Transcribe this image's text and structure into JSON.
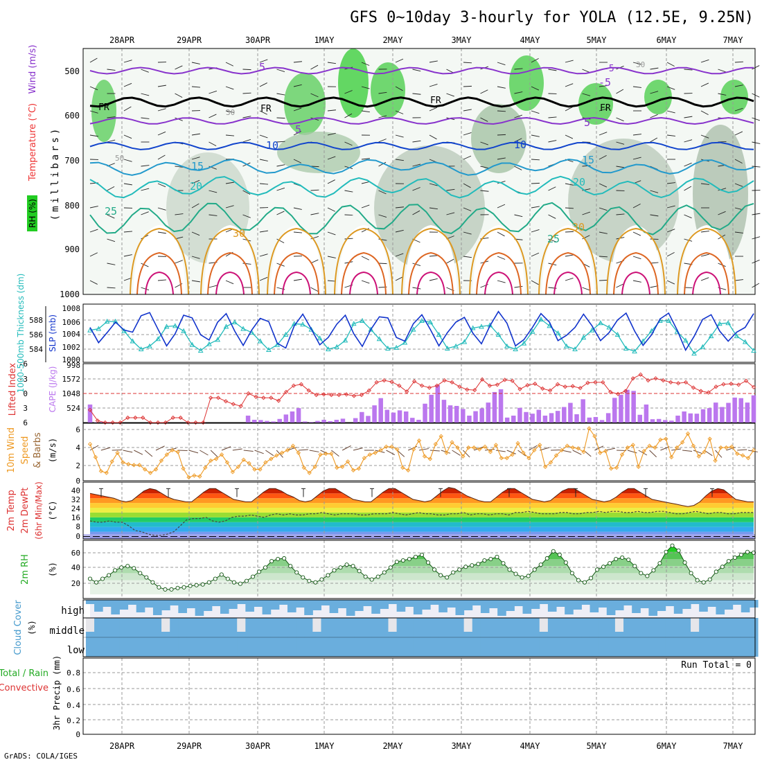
{
  "title": "GFS 0~10day 3-hourly for YOLA (12.5E, 9.25N)",
  "credit": "GrADS: COLA/IGES",
  "dates": [
    "28APR",
    "29APR",
    "30APR",
    "1MAY",
    "2MAY",
    "3MAY",
    "4MAY",
    "5MAY",
    "6MAY",
    "7MAY"
  ],
  "colors": {
    "rh_green": "#22cc22",
    "temperature": "#ee3333",
    "wind_purple": "#8833cc",
    "thickness": "#22bbbb",
    "slp": "#1133cc",
    "lifted_index": "#dd3333",
    "cape": "#bb77ee",
    "wind_speed": "#ee9922",
    "cloud": "#6aaedd",
    "grid": "#999999"
  },
  "panels": {
    "upper_air": {
      "ylabel_rh": "RH (%)",
      "ylabel_temp": "Temperature (°C)",
      "ylabel_wind": "Wind (m/s)",
      "ylabel_p": "(millibars)",
      "y_ticks": [
        "500",
        "600",
        "700",
        "800",
        "900",
        "1000"
      ],
      "contour_labels": [
        "FR",
        "FR",
        "FR",
        "FR",
        "5",
        "5",
        "5",
        "-5",
        "-5",
        "10",
        "10",
        "15",
        "15",
        "20",
        "20",
        "25",
        "25",
        "30",
        "30",
        "50",
        "30",
        "30"
      ]
    },
    "slp_thickness": {
      "ylabel_thk": "1000-500mb Thickness (dm)",
      "ylabel_slp": "SLP (mb)",
      "left_ticks": [
        "588",
        "586",
        "584"
      ],
      "right_ticks": [
        "1008",
        "1006",
        "1004",
        "1002",
        "1000",
        "998"
      ]
    },
    "cape_li": {
      "ylabel_li": "Lifted Index",
      "ylabel_cape": "CAPE (J/kg)",
      "left_ticks": [
        "-6",
        "-3",
        "0",
        "3",
        "6"
      ],
      "right_ticks": [
        "1572",
        "1048",
        "524"
      ]
    },
    "wind10m": {
      "ylabel1": "10m Wind",
      "ylabel2": "Speed",
      "ylabel3": "& Barbs",
      "unit": "(m/s)",
      "ticks": [
        "6",
        "4",
        "2",
        "0"
      ]
    },
    "temp2m": {
      "ylabel1": "2m Temp",
      "ylabel2": "2m DewPt",
      "ylabel3": "(6hr Min/Max)",
      "unit": "(°C)",
      "ticks": [
        "40",
        "32",
        "24",
        "16",
        "8",
        "0"
      ]
    },
    "rh2m": {
      "ylabel": "2m RH",
      "unit": "(%)",
      "ticks": [
        "60",
        "40",
        "20"
      ]
    },
    "cloud": {
      "ylabel": "Cloud Cover",
      "unit": "(%)",
      "levels": [
        "high",
        "middle",
        "low"
      ]
    },
    "precip": {
      "ylabel1": "Total / Rain",
      "ylabel2": "Convective",
      "ylabel3": "3hr Precip (mm)",
      "run_total": "Run Total = 0",
      "ticks": [
        "0.8",
        "0.6",
        "0.4",
        "0.2",
        "0"
      ]
    }
  },
  "chart_data": [
    {
      "type": "line",
      "name": "slp_thickness",
      "x_unit": "3-hourly step",
      "series": [
        {
          "name": "SLP (mb)",
          "y": [
            1004.6,
            1001.7,
            1003.6,
            1005.6,
            1004.1,
            1003.7,
            1006.8,
            1007.4,
            1004.2,
            1001.1,
            1003.4,
            1006.9,
            1006.4,
            1003.2,
            1002.2,
            1005.6,
            1007.2,
            1003.9,
            1001.2,
            1004.1,
            1006.3,
            1005.7,
            1001.6,
            1000.7,
            1004.9,
            1007.1,
            1004.3,
            1001.3,
            1002.7,
            1005.2,
            1006.9,
            1003.4,
            1001.0,
            1004.2,
            1006.6,
            1006.4,
            1002.7,
            1002.0,
            1005.3,
            1007.0,
            1004.2,
            1001.1,
            1003.6,
            1005.6,
            1006.5,
            1003.5,
            1001.5,
            1004.9,
            1007.6,
            1005.4,
            1001.1,
            1002.3,
            1004.6,
            1007.2,
            1005.6,
            1002.1,
            1003.1,
            1004.6,
            1007.1,
            1004.9,
            1002.1,
            1003.6,
            1006.0,
            1007.3,
            1003.9,
            1001.2,
            1003.2,
            1006.2,
            1007.3,
            1004.1,
            1000.3,
            1002.9,
            1006.1,
            1007.0,
            1003.9,
            1002.0,
            1003.7,
            1004.6,
            1007.2
          ]
        },
        {
          "name": "1000-500mb Thickness (dm)",
          "y": [
            586.6,
            586.8,
            587.8,
            587.8,
            586.5,
            585.1,
            584.0,
            584.4,
            585.4,
            587.1,
            587.2,
            586.5,
            584.6,
            583.8,
            584.7,
            585.3,
            587.1,
            587.7,
            586.8,
            586.3,
            585.1,
            583.9,
            584.6,
            586.0,
            587.5,
            587.4,
            586.7,
            585.5,
            584.0,
            584.3,
            585.2,
            587.5,
            587.9,
            586.7,
            585.4,
            584.1,
            584.2,
            584.9,
            586.7,
            587.9,
            587.7,
            586.0,
            584.1,
            584.4,
            585.0,
            586.9,
            587.1,
            587.3,
            586.0,
            584.4,
            584.0,
            584.8,
            586.4,
            588.1,
            587.2,
            586.2,
            584.4,
            584.0,
            585.6,
            586.6,
            587.6,
            587.0,
            586.0,
            584.1,
            583.7,
            585.1,
            586.5,
            587.9,
            587.9,
            586.4,
            585.2,
            583.4,
            584.3,
            585.8,
            587.5,
            587.6,
            585.8,
            585.0,
            583.8
          ]
        }
      ]
    },
    {
      "type": "bar",
      "name": "cape_lifted_index",
      "series": [
        {
          "name": "CAPE (J/kg)",
          "y": [
            650,
            10,
            20,
            20,
            10,
            0,
            0,
            0,
            0,
            0,
            0,
            0,
            0,
            0,
            0,
            0,
            0,
            0,
            0,
            0,
            0,
            0,
            0,
            0,
            0,
            250,
            100,
            90,
            60,
            40,
            130,
            290,
            400,
            520,
            40,
            20,
            60,
            100,
            50,
            100,
            140,
            0,
            160,
            380,
            240,
            620,
            880,
            460,
            360,
            440,
            400,
            170,
            100,
            680,
            1000,
            1350,
            820,
            620,
            600,
            490,
            250,
            410,
            510,
            720,
            1100,
            1200,
            180,
            250,
            530,
            380,
            320,
            460,
            250,
            340,
            420,
            560,
            710,
            300,
            840,
            180,
            200,
            90,
            340,
            890,
            1000,
            1180,
            1140,
            280,
            650,
            120,
            130,
            90,
            70,
            250,
            400,
            330,
            320,
            480,
            520,
            720,
            560,
            710,
            900,
            880,
            720,
            980
          ]
        },
        {
          "name": "Lifted Index",
          "y": [
            3.4,
            5.6,
            6,
            6,
            6,
            5,
            5,
            5,
            6,
            6,
            6,
            5,
            5,
            6,
            6,
            6,
            0.9,
            0.9,
            1.6,
            2.2,
            2.6,
            0,
            0.7,
            0.9,
            0.9,
            1.5,
            -0.3,
            -1.6,
            -1.9,
            -0.6,
            0.3,
            0.2,
            0.3,
            0.3,
            0.2,
            0.5,
            0.3,
            -0.6,
            -2.3,
            -2.7,
            -2.4,
            -1.6,
            -0.4,
            -2.5,
            -1.6,
            -1.2,
            -1.6,
            -2.7,
            -2.3,
            -1.4,
            -0.8,
            -0.7,
            -2.9,
            -1.6,
            -1.8,
            -2.8,
            -2.6,
            -0.9,
            -1.7,
            -2.0,
            -1.0,
            -0.6,
            -1.9,
            -1.4,
            -1.5,
            -1.1,
            -2.2,
            -2.3,
            -2.3,
            -0.3,
            0.1,
            -0.5,
            -3.1,
            -3.9,
            -2.7,
            -3.1,
            -2.7,
            -2.3,
            -2.1,
            -2.3,
            -1.2,
            -0.5,
            -0.2,
            -1.4,
            -1.9,
            -2.0,
            -1.8,
            -2.6,
            -1.3
          ]
        }
      ]
    },
    {
      "type": "line",
      "name": "wind_speed_10m",
      "series": [
        {
          "name": "10m Wind Speed (m/s)",
          "y": [
            4.2,
            2.7,
            1.1,
            0.9,
            2.2,
            3.2,
            2.1,
            1.9,
            1.8,
            1.8,
            1.3,
            0.9,
            1.3,
            2.3,
            3.0,
            3.5,
            3.3,
            1.4,
            0.4,
            0.6,
            0.5,
            1.5,
            2.3,
            2.5,
            3.0,
            2.1,
            1.0,
            1.6,
            2.4,
            2.0,
            1.3,
            1.3,
            2.1,
            2.5,
            2.9,
            3.2,
            3.5,
            4.0,
            3.2,
            1.5,
            0.9,
            1.6,
            3.0,
            3.1,
            3.1,
            1.5,
            1.6,
            2.2,
            1.2,
            1.4,
            2.6,
            3.0,
            3.2,
            3.5,
            3.9,
            3.9,
            3.6,
            1.5,
            1.2,
            3.6,
            4.6,
            2.8,
            2.5,
            4.2,
            5.1,
            3.2,
            4.4,
            3.8,
            2.8,
            3.8,
            3.8,
            3.6,
            3.9,
            3.3,
            4.1,
            2.6,
            2.6,
            3.0,
            4.3,
            3.2,
            2.6,
            3.5,
            4.1,
            1.6,
            2.1,
            2.9,
            3.5,
            4.0,
            3.8,
            3.7,
            3.3,
            6.0,
            5.1,
            3.2,
            3.4,
            1.4,
            1.5,
            3.0,
            3.8,
            4.1,
            1.6,
            3.4,
            4.0,
            3.8,
            4.7,
            4.8,
            2.7,
            3.8,
            4.4,
            5.4,
            4.0,
            2.8,
            3.3,
            4.8,
            2.3,
            3.8,
            3.8,
            3.9,
            3.1,
            2.9,
            2.6,
            3.5
          ]
        }
      ]
    },
    {
      "type": "area",
      "name": "temperature_2m",
      "series": [
        {
          "name": "2m Temp (°C)",
          "y": [
            36,
            35,
            34,
            33,
            32,
            30,
            29,
            30,
            34,
            38,
            40,
            39,
            36,
            33,
            31,
            30,
            29,
            29,
            33,
            37,
            40,
            40,
            37,
            34,
            31,
            30,
            29,
            29,
            33,
            37,
            40,
            40,
            38,
            35,
            33,
            30,
            29,
            30,
            34,
            38,
            40,
            40,
            37,
            34,
            31,
            30,
            29,
            29,
            33,
            37,
            40,
            40,
            37,
            34,
            31,
            30,
            29,
            30,
            34,
            38,
            41,
            40,
            37,
            34,
            32,
            30,
            29,
            29,
            33,
            37,
            40,
            40,
            37,
            34,
            31,
            30,
            29,
            30,
            34,
            38,
            40,
            40,
            37,
            34,
            31,
            30,
            29,
            30,
            33,
            37,
            40,
            40,
            37,
            34,
            31,
            30,
            29,
            28,
            27,
            26,
            25,
            26,
            29,
            34,
            38,
            40,
            39,
            35,
            31,
            30,
            29,
            29
          ]
        },
        {
          "name": "2m DewPt (°C)",
          "y": [
            13,
            12,
            12,
            13,
            12,
            12,
            9,
            5,
            4,
            2,
            1,
            1,
            2,
            4,
            9,
            14,
            15,
            15,
            16,
            13,
            12,
            13,
            16,
            17,
            17,
            18,
            17,
            16,
            18,
            19,
            18,
            19,
            18,
            18,
            19,
            19,
            20,
            19,
            18,
            19,
            19,
            19,
            18,
            18,
            19,
            19,
            19,
            20,
            19,
            18,
            19,
            20,
            19,
            19,
            18,
            18,
            19,
            19,
            20,
            18,
            19,
            19,
            18,
            19,
            19,
            18,
            20,
            20,
            21,
            20,
            19,
            19,
            19,
            20,
            20,
            19,
            19,
            20,
            20,
            21,
            20,
            21,
            21,
            20,
            20,
            21,
            20,
            20,
            21,
            21,
            20,
            19,
            19,
            20,
            21,
            20,
            19,
            20,
            20,
            19,
            19,
            20,
            20,
            20
          ]
        }
      ]
    },
    {
      "type": "area",
      "name": "rh_2m",
      "series": [
        {
          "name": "2m RH (%)",
          "y": [
            22,
            17,
            22,
            27,
            34,
            38,
            40,
            37,
            30,
            24,
            17,
            10,
            7,
            7,
            9,
            10,
            12,
            13,
            14,
            17,
            22,
            28,
            22,
            17,
            15,
            19,
            25,
            32,
            38,
            47,
            50,
            51,
            40,
            31,
            24,
            19,
            17,
            21,
            27,
            34,
            38,
            42,
            40,
            33,
            25,
            21,
            25,
            31,
            38,
            46,
            48,
            50,
            53,
            56,
            45,
            35,
            27,
            24,
            31,
            35,
            39,
            41,
            43,
            48,
            50,
            53,
            44,
            35,
            29,
            24,
            26,
            35,
            42,
            51,
            61,
            56,
            45,
            30,
            20,
            17,
            23,
            35,
            39,
            44,
            50,
            52,
            49,
            40,
            30,
            26,
            34,
            44,
            60,
            69,
            62,
            45,
            30,
            20,
            17,
            21,
            32,
            39,
            47,
            52,
            56,
            60,
            59
          ]
        }
      ]
    },
    {
      "type": "area",
      "name": "cloud_cover",
      "categories": [
        "high",
        "middle",
        "low"
      ]
    },
    {
      "type": "bar",
      "name": "precip_3hr",
      "ylim": [
        0,
        0.9
      ],
      "values": []
    }
  ]
}
